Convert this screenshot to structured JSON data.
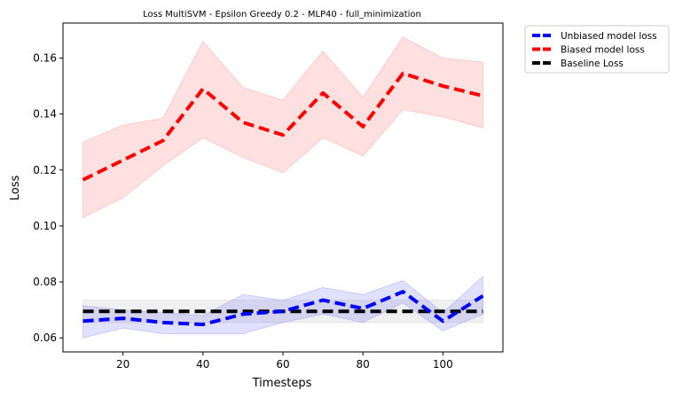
{
  "chart_data": {
    "type": "line",
    "title": "Loss MultiSVM - Epsilon Greedy 0.2 - MLP40 - full_minimization",
    "xlabel": "Timesteps",
    "ylabel": "Loss",
    "xlim": [
      5,
      115
    ],
    "ylim": [
      0.055,
      0.1725
    ],
    "xticks": [
      20,
      40,
      60,
      80,
      100
    ],
    "yticks": [
      0.06,
      0.08,
      0.1,
      0.12,
      0.14,
      0.16
    ],
    "ytick_labels": [
      "0.06",
      "0.08",
      "0.10",
      "0.12",
      "0.14",
      "0.16"
    ],
    "grid": false,
    "legend_placement": "outside-top-right",
    "x": [
      10,
      20,
      30,
      40,
      50,
      60,
      70,
      80,
      90,
      100,
      110
    ],
    "series": [
      {
        "name": "Unbiased model loss",
        "color": "#0000ff",
        "band_color": "#0000ff",
        "values": [
          0.066,
          0.067,
          0.0655,
          0.0648,
          0.0685,
          0.0695,
          0.0735,
          0.0705,
          0.0765,
          0.066,
          0.075
        ],
        "lower": [
          0.06,
          0.0635,
          0.0615,
          0.0615,
          0.0615,
          0.0655,
          0.0685,
          0.0655,
          0.0725,
          0.0625,
          0.0685
        ],
        "upper": [
          0.0715,
          0.07,
          0.069,
          0.068,
          0.0755,
          0.0735,
          0.078,
          0.0755,
          0.0805,
          0.069,
          0.082
        ]
      },
      {
        "name": "Biased model loss",
        "color": "#ff0000",
        "band_color": "#ff0000",
        "values": [
          0.1165,
          0.1235,
          0.1305,
          0.149,
          0.137,
          0.1325,
          0.1475,
          0.1355,
          0.1545,
          0.15,
          0.1465
        ],
        "lower": [
          0.103,
          0.11,
          0.1215,
          0.1315,
          0.1245,
          0.119,
          0.1315,
          0.125,
          0.1415,
          0.139,
          0.135
        ],
        "upper": [
          0.13,
          0.136,
          0.1385,
          0.166,
          0.1495,
          0.145,
          0.1625,
          0.146,
          0.1675,
          0.16,
          0.1585
        ]
      },
      {
        "name": "Baseline Loss",
        "color": "#000000",
        "band_color": "#808080",
        "values": [
          0.0695,
          0.0695,
          0.0695,
          0.0695,
          0.0695,
          0.0695,
          0.0695,
          0.0695,
          0.0695,
          0.0695,
          0.0695
        ],
        "lower": [
          0.0655,
          0.0655,
          0.0655,
          0.0655,
          0.0655,
          0.0655,
          0.0655,
          0.0655,
          0.0655,
          0.0655,
          0.0655
        ],
        "upper": [
          0.0735,
          0.0735,
          0.0735,
          0.0735,
          0.0735,
          0.0735,
          0.0735,
          0.0735,
          0.0735,
          0.0735,
          0.0735
        ]
      }
    ]
  }
}
